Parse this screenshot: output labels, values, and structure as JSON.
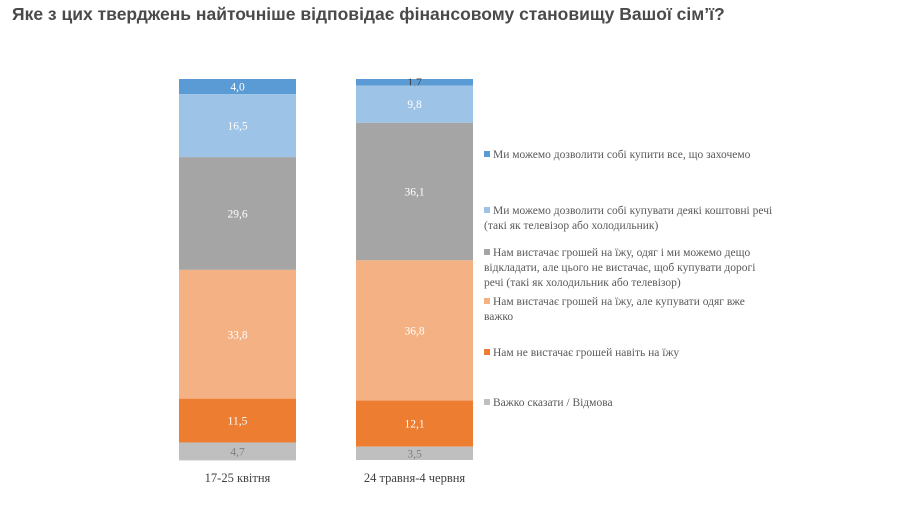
{
  "title": "Яке з цих тверджень найточніше відповідає фінансовому становищу Вашої сім’ї?",
  "chart_data": {
    "type": "bar",
    "stacked": true,
    "orientation": "vertical",
    "categories": [
      "17-25 квітня",
      "24 травня-4 червня"
    ],
    "ylim": [
      0,
      100
    ],
    "grid": false,
    "legend_placement": "right",
    "series": [
      {
        "name": "Ми можемо дозволити  собі купити все, що захочемо",
        "color": "#5b9bd5",
        "label_color": "#ffffff",
        "values": [
          4.0,
          1.7
        ]
      },
      {
        "name": "Ми можемо дозволити  собі купувати деякі коштовні речі (такі  як телевізор  або холодильник)",
        "color": "#9dc3e6",
        "label_color": "#ffffff",
        "values": [
          16.5,
          9.8
        ]
      },
      {
        "name": "Нам вистачає грошей на їжу, одяг  і ми можемо дещо відкладати,  але цього не вистачає, щоб купувати дорогі  речі (такі  як холодильник  або телевізор)",
        "color": "#a5a5a5",
        "label_color": "#ffffff",
        "values": [
          29.6,
          36.1
        ]
      },
      {
        "name": "Нам вистачає грошей на їжу, але купувати одяг вже важко",
        "color": "#f4b183",
        "label_color": "#ffffff",
        "values": [
          33.8,
          36.8
        ]
      },
      {
        "name": "Нам не вистачає грошей навіть  на їжу",
        "color": "#ed7d31",
        "label_color": "#ffffff",
        "values": [
          11.5,
          12.1
        ]
      },
      {
        "name": "Важко  сказати / Відмова",
        "color": "#bfbfbf",
        "label_color": "#7f7f7f",
        "values": [
          4.7,
          3.5
        ]
      }
    ],
    "data_labels": [
      [
        "4,0",
        "16,5",
        "29,6",
        "33,8",
        "11,5",
        "4,7"
      ],
      [
        "1,7",
        "9,8",
        "36,1",
        "36,8",
        "12,1",
        "3,5"
      ]
    ]
  }
}
